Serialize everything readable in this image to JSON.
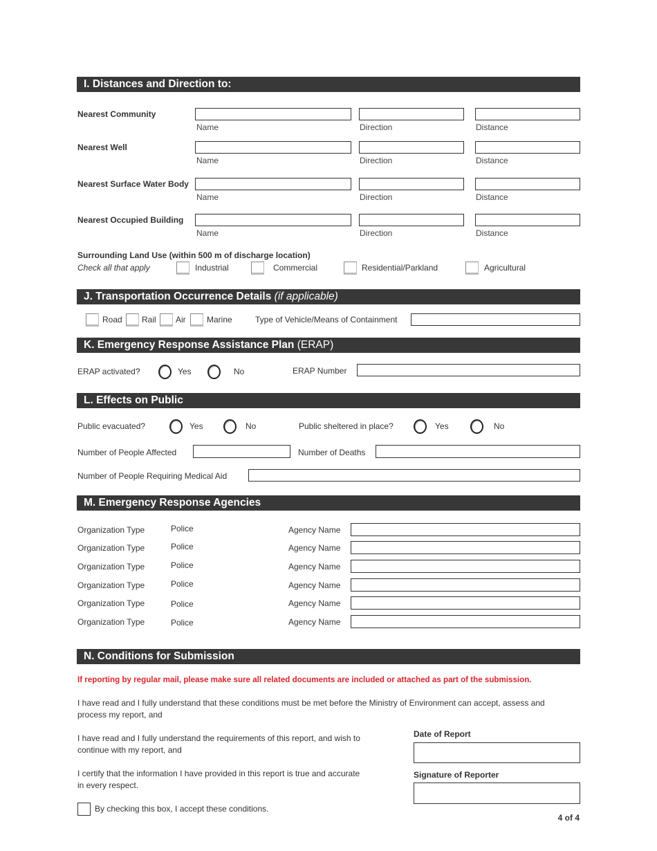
{
  "section_i": {
    "title": "I.  Distances and Direction to:",
    "rows": [
      {
        "label": "Nearest Community"
      },
      {
        "label": "Nearest Well"
      },
      {
        "label": "Nearest Surface Water Body"
      },
      {
        "label": "Nearest Occupied Building"
      }
    ],
    "col_name": "Name",
    "col_direction": "Direction",
    "col_distance": "Distance",
    "land_use_label": "Surrounding Land Use (within 500 m of discharge location)",
    "land_use_hint": "Check all that apply",
    "land_use_options": [
      "Industrial",
      "Commercial",
      "Residential/Parkland",
      "Agricultural"
    ]
  },
  "section_j": {
    "title": "J.  Transportation Occurrence Details",
    "title_suffix": "(if applicable)",
    "modes": [
      "Road",
      "Rail",
      "Air",
      "Marine"
    ],
    "vehicle_label": "Type of Vehicle/Means of Containment",
    "vehicle_value": ""
  },
  "section_k": {
    "title": "K.  Emergency Response Assistance Plan",
    "title_suffix": "(ERAP)",
    "activated_label": "ERAP activated?",
    "yes": "Yes",
    "no": "No",
    "number_label": "ERAP Number",
    "number_value": ""
  },
  "section_l": {
    "title": "L.  Effects on Public",
    "evacuated_label": "Public evacuated?",
    "sheltered_label": "Public sheltered in place?",
    "yes": "Yes",
    "no": "No",
    "affected_label": "Number of People Affected",
    "deaths_label": "Number of Deaths",
    "medical_label": "Number of People Requiring Medical Aid"
  },
  "section_m": {
    "title": "M.  Emergency Response Agencies",
    "org_type_label": "Organization Type",
    "agency_name_label": "Agency Name",
    "rows": [
      {
        "org_type": "Police",
        "agency_name": ""
      },
      {
        "org_type": "Police",
        "agency_name": ""
      },
      {
        "org_type": "Police",
        "agency_name": ""
      },
      {
        "org_type": "Police",
        "agency_name": ""
      },
      {
        "org_type": "Police",
        "agency_name": ""
      },
      {
        "org_type": "Police",
        "agency_name": ""
      }
    ]
  },
  "section_n": {
    "title": "N.  Conditions for Submission",
    "mail_notice": "If reporting by regular mail, please make sure all related documents are included or attached as part of the submission.",
    "para1": "I have read and I fully understand that these conditions must be met before the Ministry of Environment can accept, assess and process my report, and",
    "para2": "I have read and I fully understand the requirements of this report, and wish to continue with my report, and",
    "para3": "I certify that the information I have provided in this report is true and accurate in every respect.",
    "accept_label": "By checking this box, I accept these conditions.",
    "date_label": "Date of Report",
    "signature_label": "Signature of Reporter"
  },
  "footer": {
    "page": "4 of 4"
  },
  "colors": {
    "header_bg": "#383838",
    "notice_red": "#d9262c"
  }
}
